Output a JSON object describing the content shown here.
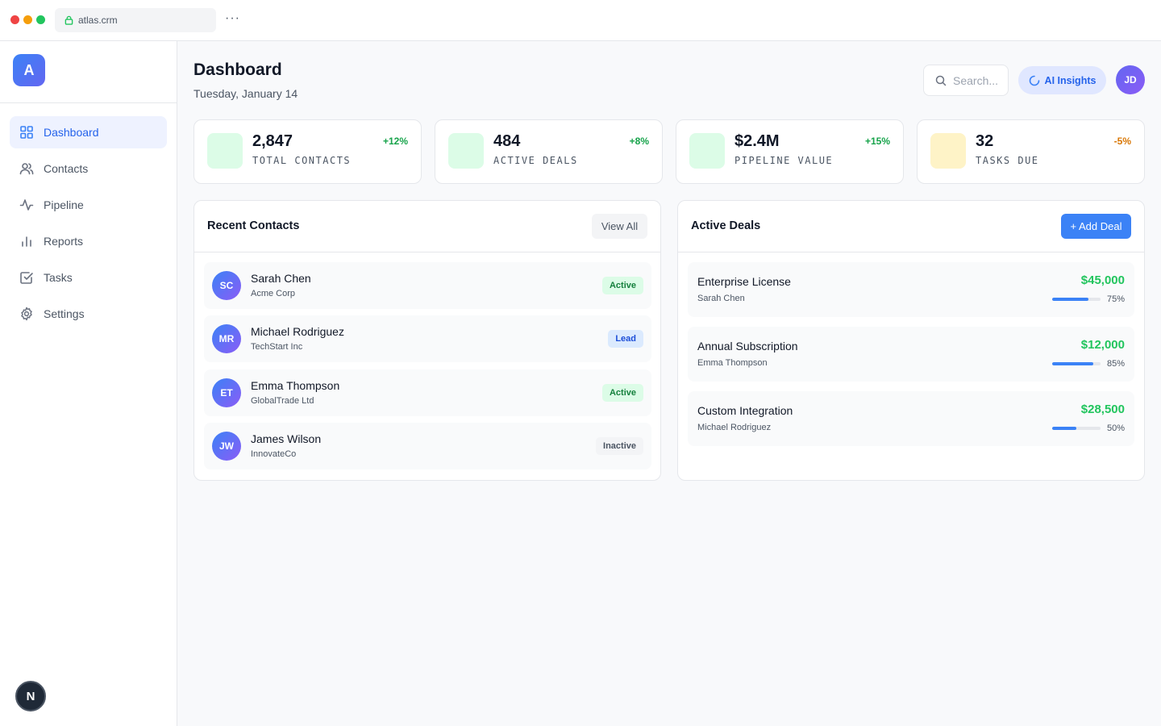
{
  "browser": {
    "url": "atlas.crm",
    "more": "···"
  },
  "sidebar": {
    "logo": "A",
    "items": [
      {
        "label": "Dashboard",
        "icon": "grid-icon",
        "active": true
      },
      {
        "label": "Contacts",
        "icon": "users-icon",
        "active": false
      },
      {
        "label": "Pipeline",
        "icon": "activity-icon",
        "active": false
      },
      {
        "label": "Reports",
        "icon": "bar-chart-icon",
        "active": false
      },
      {
        "label": "Tasks",
        "icon": "check-square-icon",
        "active": false
      },
      {
        "label": "Settings",
        "icon": "gear-icon",
        "active": false
      }
    ],
    "footer_badge": "N"
  },
  "header": {
    "title": "Dashboard",
    "date": "Tuesday, January 14",
    "search_placeholder": "Search...",
    "ai_button": "AI Insights",
    "user_initials": "JD"
  },
  "stats": [
    {
      "value": "2,847",
      "label": "TOTAL CONTACTS",
      "delta": "+12%",
      "trend": "up"
    },
    {
      "value": "484",
      "label": "ACTIVE DEALS",
      "delta": "+8%",
      "trend": "up"
    },
    {
      "value": "$2.4M",
      "label": "PIPELINE VALUE",
      "delta": "+15%",
      "trend": "up"
    },
    {
      "value": "32",
      "label": "TASKS DUE",
      "delta": "-5%",
      "trend": "down"
    }
  ],
  "recent_contacts": {
    "title": "Recent Contacts",
    "view_all": "View All",
    "items": [
      {
        "initials": "SC",
        "name": "Sarah Chen",
        "company": "Acme Corp",
        "status": "Active"
      },
      {
        "initials": "MR",
        "name": "Michael Rodriguez",
        "company": "TechStart Inc",
        "status": "Lead"
      },
      {
        "initials": "ET",
        "name": "Emma Thompson",
        "company": "GlobalTrade Ltd",
        "status": "Active"
      },
      {
        "initials": "JW",
        "name": "James Wilson",
        "company": "InnovateCo",
        "status": "Inactive"
      }
    ]
  },
  "active_deals": {
    "title": "Active Deals",
    "add_button": "+ Add Deal",
    "items": [
      {
        "name": "Enterprise License",
        "owner": "Sarah Chen",
        "amount": "$45,000",
        "progress": 75,
        "progress_label": "75%"
      },
      {
        "name": "Annual Subscription",
        "owner": "Emma Thompson",
        "amount": "$12,000",
        "progress": 85,
        "progress_label": "85%"
      },
      {
        "name": "Custom Integration",
        "owner": "Michael Rodriguez",
        "amount": "$28,500",
        "progress": 50,
        "progress_label": "50%"
      }
    ]
  },
  "colors": {
    "accent": "#3b82f6",
    "success": "#22c55e",
    "warning": "#d97706",
    "sidebar_active_bg": "#eef2ff"
  }
}
